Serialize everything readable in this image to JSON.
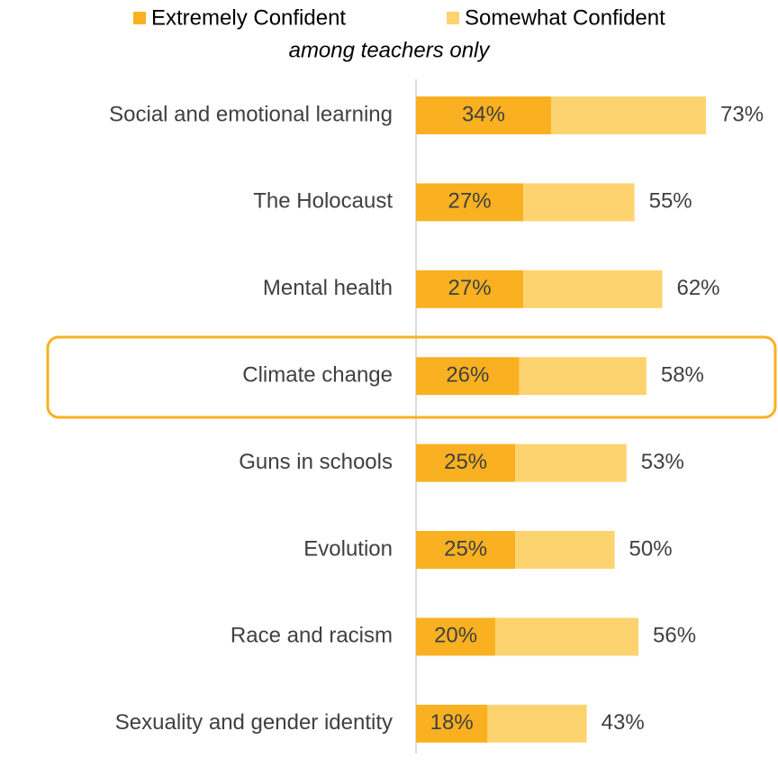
{
  "chart_data": {
    "type": "stacked-bar-horizontal",
    "subtitle": "among teachers only",
    "categories": [
      "Social and emotional learning",
      "The Holocaust",
      "Mental health",
      "Climate change",
      "Guns in schools",
      "Evolution",
      "Race and racism",
      "Sexuality and gender identity"
    ],
    "series": [
      {
        "name": "Extremely Confident",
        "color": "#f9b121",
        "values": [
          34,
          27,
          27,
          26,
          25,
          25,
          20,
          18
        ],
        "value_labels": [
          "34%",
          "27%",
          "27%",
          "26%",
          "25%",
          "25%",
          "20%",
          "18%"
        ]
      },
      {
        "name": "Somewhat Confident",
        "color": "#fdd370",
        "values": [
          39,
          28,
          35,
          32,
          28,
          25,
          36,
          25
        ]
      }
    ],
    "totals": {
      "values": [
        73,
        55,
        62,
        58,
        53,
        50,
        56,
        43
      ],
      "value_labels": [
        "73%",
        "55%",
        "62%",
        "58%",
        "53%",
        "50%",
        "56%",
        "43%"
      ]
    },
    "xlim": [
      0,
      90
    ]
  }
}
